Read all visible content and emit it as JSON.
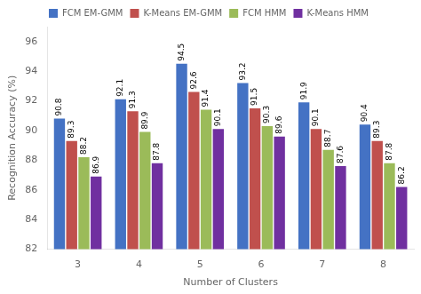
{
  "chart_data": {
    "type": "bar",
    "categories": [
      3,
      4,
      5,
      6,
      7,
      8
    ],
    "series": [
      {
        "name": "FCM EM-GMM",
        "color": "#4472C4",
        "values": [
          90.8,
          92.1,
          94.5,
          93.2,
          91.9,
          90.4
        ]
      },
      {
        "name": "K-Means EM-GMM",
        "color": "#C0504D",
        "values": [
          89.3,
          91.3,
          92.6,
          91.5,
          90.1,
          89.3
        ]
      },
      {
        "name": "FCM HMM",
        "color": "#9BBB59",
        "values": [
          88.2,
          89.9,
          91.4,
          90.3,
          88.7,
          87.8
        ]
      },
      {
        "name": "K-Means HMM",
        "color": "#7030A0",
        "values": [
          86.9,
          87.8,
          90.1,
          89.6,
          87.6,
          86.2
        ]
      }
    ],
    "xlabel": "Number of Clusters",
    "ylabel": "Recognition Accuracy (%)",
    "ylim": [
      82,
      97
    ],
    "yticks": [
      82,
      84,
      86,
      88,
      90,
      92,
      94,
      96
    ],
    "grid": false,
    "legend": "top",
    "data_labels": true
  }
}
